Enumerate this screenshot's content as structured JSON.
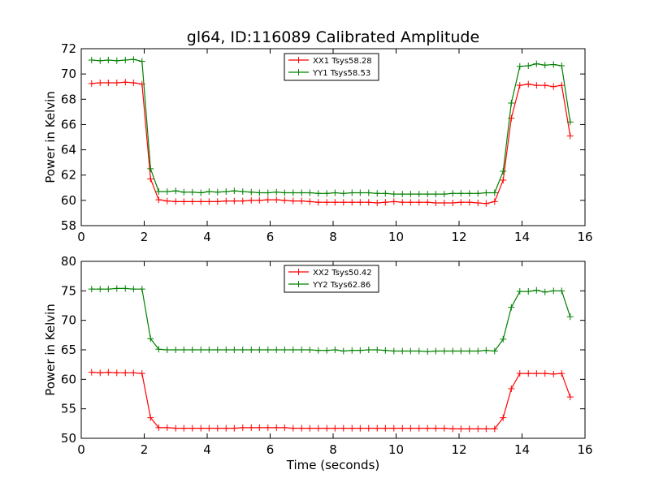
{
  "title": "gl64, ID:116089 Calibrated Amplitude",
  "colors": {
    "red": "#ff0000",
    "green": "#008000"
  },
  "chart_data": [
    {
      "type": "line",
      "xlabel": "",
      "ylabel": "Power in Kelvin",
      "xlim": [
        0,
        16
      ],
      "ylim": [
        58,
        72
      ],
      "xticks": [
        0,
        2,
        4,
        6,
        8,
        10,
        12,
        14,
        16
      ],
      "yticks": [
        58,
        60,
        62,
        64,
        66,
        68,
        70,
        72
      ],
      "legend_position": "top-center",
      "x": [
        0.33,
        0.6,
        0.86,
        1.13,
        1.4,
        1.66,
        1.93,
        2.2,
        2.46,
        2.73,
        3.0,
        3.26,
        3.53,
        3.8,
        4.06,
        4.33,
        4.6,
        4.86,
        5.13,
        5.4,
        5.66,
        5.93,
        6.2,
        6.46,
        6.73,
        7.0,
        7.26,
        7.53,
        7.8,
        8.06,
        8.33,
        8.6,
        8.86,
        9.13,
        9.4,
        9.66,
        9.93,
        10.2,
        10.46,
        10.73,
        11.0,
        11.26,
        11.53,
        11.8,
        12.06,
        12.33,
        12.6,
        12.86,
        13.13,
        13.4,
        13.66,
        13.93,
        14.2,
        14.46,
        14.73,
        15.0,
        15.26,
        15.53
      ],
      "series": [
        {
          "name": "XX1 Tsys58.28",
          "color": "#ff0000",
          "values": [
            69.25,
            69.3,
            69.3,
            69.3,
            69.35,
            69.3,
            69.2,
            61.7,
            60.05,
            59.95,
            59.9,
            59.9,
            59.9,
            59.9,
            59.9,
            59.9,
            59.95,
            59.95,
            59.95,
            60.0,
            60.0,
            60.05,
            60.05,
            60.0,
            59.95,
            59.95,
            59.9,
            59.85,
            59.85,
            59.85,
            59.85,
            59.85,
            59.85,
            59.85,
            59.8,
            59.85,
            59.9,
            59.85,
            59.85,
            59.85,
            59.85,
            59.8,
            59.8,
            59.8,
            59.85,
            59.85,
            59.8,
            59.75,
            59.9,
            61.6,
            66.5,
            69.1,
            69.2,
            69.1,
            69.1,
            69.0,
            69.1,
            65.1
          ]
        },
        {
          "name": "YY1 Tsys58.53",
          "color": "#008000",
          "values": [
            71.1,
            71.05,
            71.1,
            71.05,
            71.1,
            71.15,
            71.0,
            62.5,
            60.7,
            60.7,
            60.75,
            60.65,
            60.65,
            60.6,
            60.7,
            60.65,
            60.7,
            60.75,
            60.7,
            60.65,
            60.6,
            60.6,
            60.65,
            60.6,
            60.6,
            60.6,
            60.6,
            60.55,
            60.55,
            60.6,
            60.55,
            60.6,
            60.6,
            60.6,
            60.55,
            60.55,
            60.5,
            60.5,
            60.5,
            60.5,
            60.5,
            60.5,
            60.5,
            60.55,
            60.55,
            60.55,
            60.55,
            60.6,
            60.6,
            62.3,
            67.7,
            70.6,
            70.65,
            70.8,
            70.7,
            70.75,
            70.65,
            66.2
          ]
        }
      ]
    },
    {
      "type": "line",
      "xlabel": "Time (seconds)",
      "ylabel": "Power in Kelvin",
      "xlim": [
        0,
        16
      ],
      "ylim": [
        50,
        80
      ],
      "xticks": [
        0,
        2,
        4,
        6,
        8,
        10,
        12,
        14,
        16
      ],
      "yticks": [
        50,
        55,
        60,
        65,
        70,
        75,
        80
      ],
      "legend_position": "top-center",
      "x": [
        0.33,
        0.6,
        0.86,
        1.13,
        1.4,
        1.66,
        1.93,
        2.2,
        2.46,
        2.73,
        3.0,
        3.26,
        3.53,
        3.8,
        4.06,
        4.33,
        4.6,
        4.86,
        5.13,
        5.4,
        5.66,
        5.93,
        6.2,
        6.46,
        6.73,
        7.0,
        7.26,
        7.53,
        7.8,
        8.06,
        8.33,
        8.6,
        8.86,
        9.13,
        9.4,
        9.66,
        9.93,
        10.2,
        10.46,
        10.73,
        11.0,
        11.26,
        11.53,
        11.8,
        12.06,
        12.33,
        12.6,
        12.86,
        13.13,
        13.4,
        13.66,
        13.93,
        14.2,
        14.46,
        14.73,
        15.0,
        15.26,
        15.53
      ],
      "series": [
        {
          "name": "XX2 Tsys50.42",
          "color": "#ff0000",
          "values": [
            61.2,
            61.1,
            61.2,
            61.1,
            61.1,
            61.1,
            61.0,
            53.5,
            51.8,
            51.8,
            51.7,
            51.7,
            51.7,
            51.7,
            51.7,
            51.7,
            51.7,
            51.7,
            51.8,
            51.8,
            51.8,
            51.8,
            51.8,
            51.8,
            51.7,
            51.7,
            51.7,
            51.7,
            51.7,
            51.7,
            51.7,
            51.7,
            51.7,
            51.7,
            51.7,
            51.7,
            51.7,
            51.7,
            51.7,
            51.7,
            51.7,
            51.7,
            51.7,
            51.6,
            51.6,
            51.6,
            51.6,
            51.6,
            51.6,
            53.5,
            58.4,
            61.0,
            61.0,
            61.0,
            61.0,
            60.9,
            61.0,
            57.0
          ]
        },
        {
          "name": "YY2 Tsys62.86",
          "color": "#008000",
          "values": [
            75.3,
            75.3,
            75.3,
            75.4,
            75.4,
            75.3,
            75.3,
            66.9,
            65.1,
            65.0,
            65.0,
            65.0,
            65.0,
            65.0,
            65.0,
            65.0,
            65.0,
            65.0,
            65.0,
            65.0,
            65.0,
            65.0,
            65.0,
            65.0,
            65.0,
            65.0,
            65.0,
            64.9,
            64.9,
            65.0,
            64.8,
            64.9,
            64.9,
            65.0,
            65.0,
            64.9,
            64.8,
            64.8,
            64.8,
            64.8,
            64.7,
            64.8,
            64.8,
            64.8,
            64.8,
            64.8,
            64.8,
            64.9,
            64.8,
            66.8,
            72.2,
            74.9,
            74.9,
            75.1,
            74.8,
            75.0,
            75.0,
            70.6
          ]
        }
      ]
    }
  ]
}
